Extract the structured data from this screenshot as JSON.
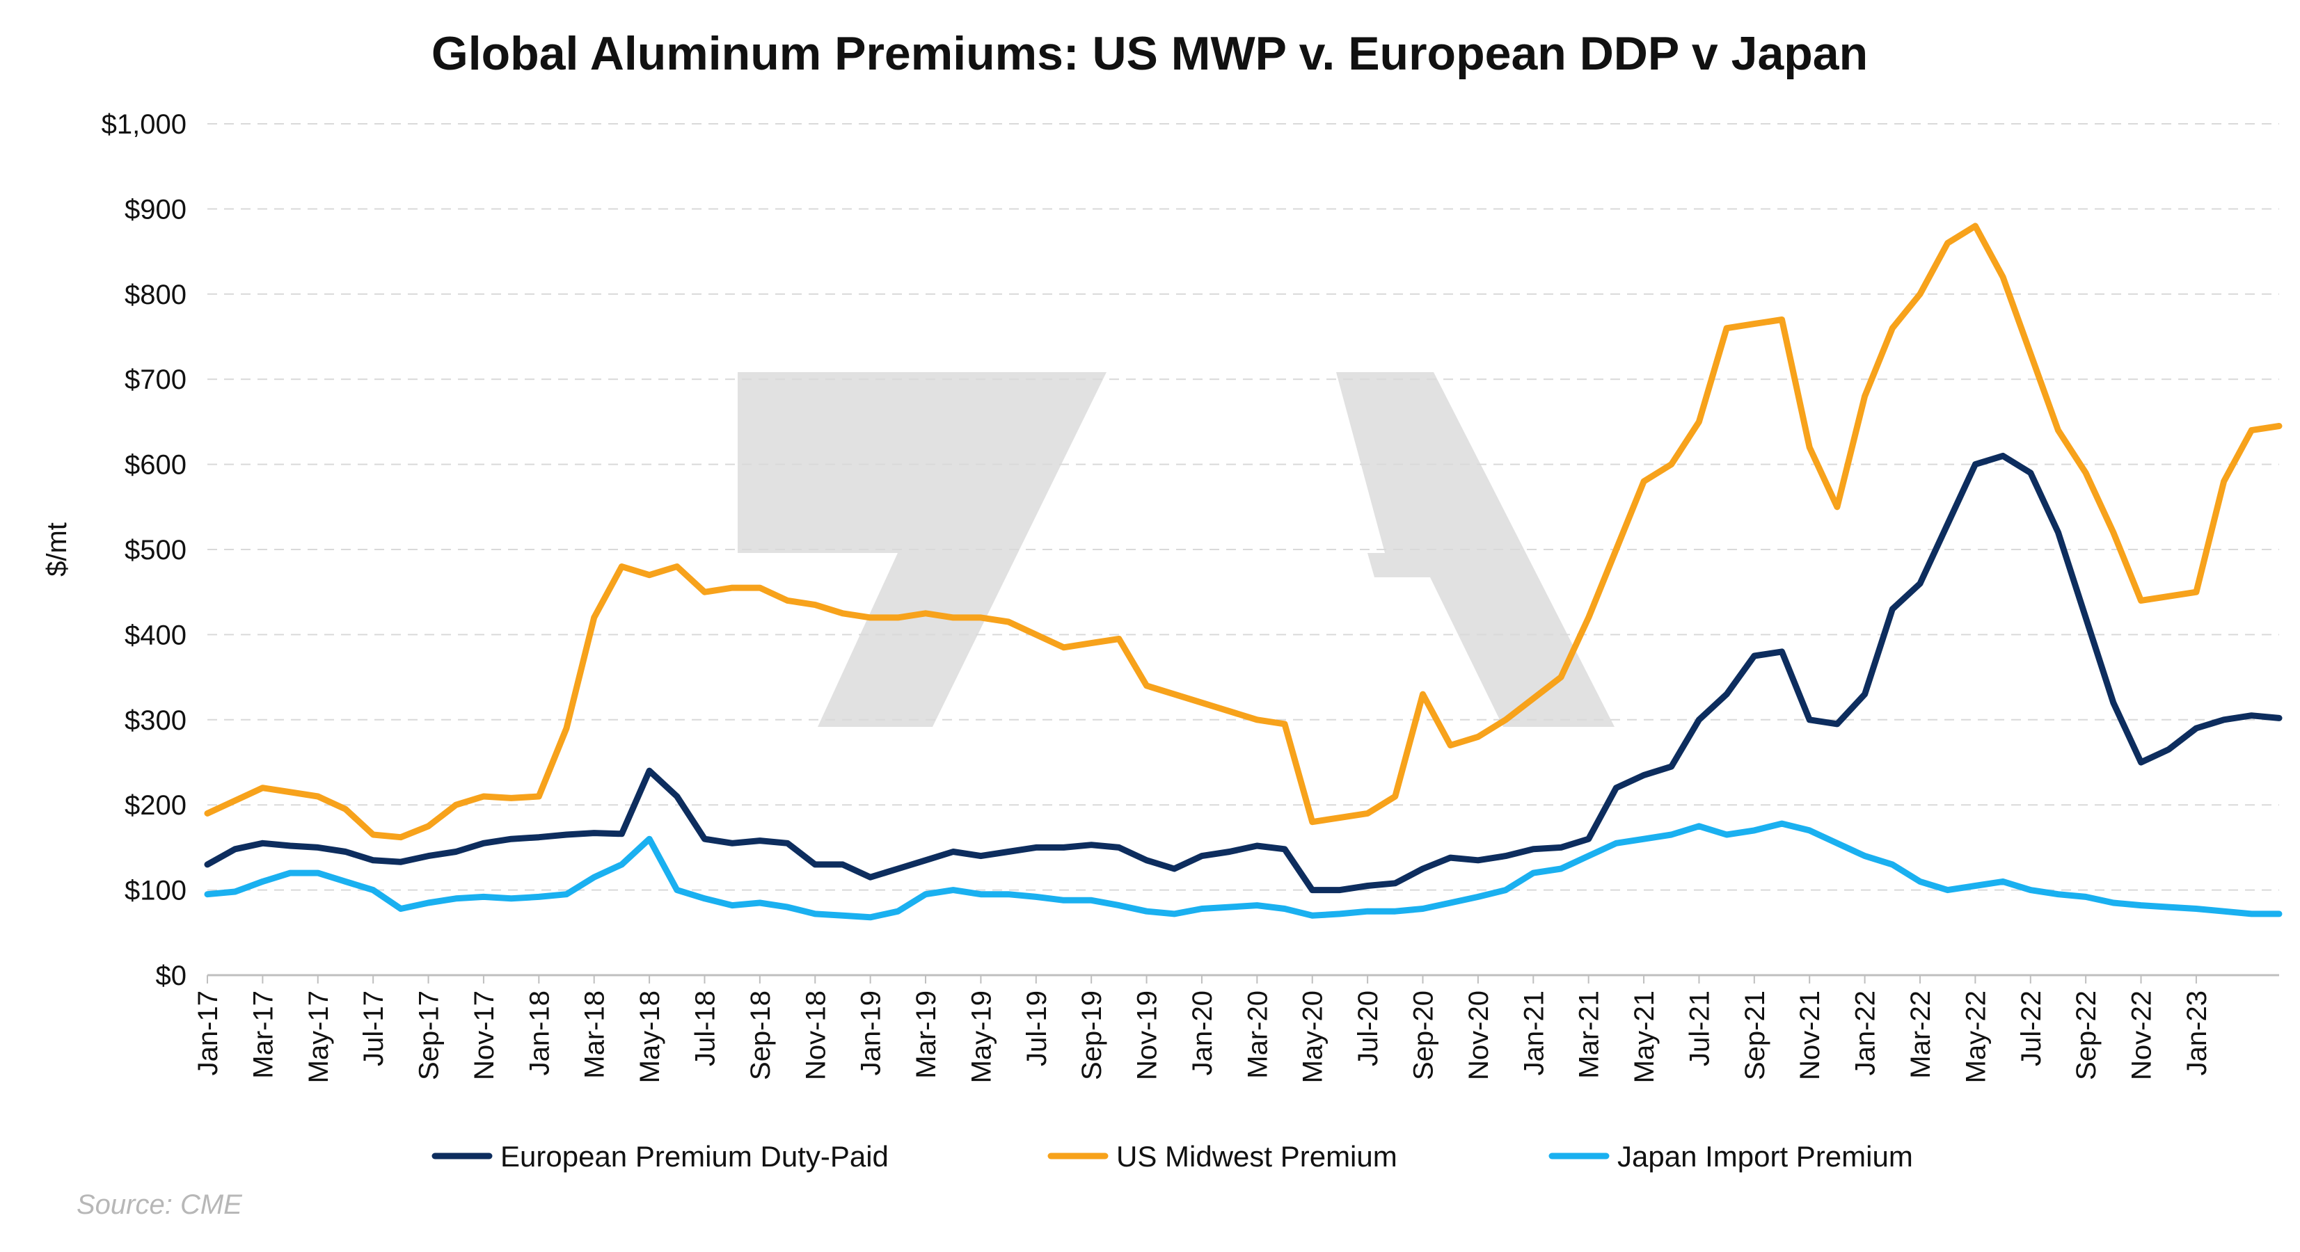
{
  "chart_data": {
    "type": "line",
    "title": "Global Aluminum Premiums: US MWP v. European DDP v Japan",
    "ylabel": "$/mt",
    "xlabel": "",
    "ylim": [
      0,
      1000
    ],
    "yticks": [
      "$0",
      "$100",
      "$200",
      "$300",
      "$400",
      "$500",
      "$600",
      "$700",
      "$800",
      "$900",
      "$1,000"
    ],
    "yticks_values": [
      0,
      100,
      200,
      300,
      400,
      500,
      600,
      700,
      800,
      900,
      1000
    ],
    "xticks": [
      "Jan-17",
      "Mar-17",
      "May-17",
      "Jul-17",
      "Sep-17",
      "Nov-17",
      "Jan-18",
      "Mar-18",
      "May-18",
      "Jul-18",
      "Sep-18",
      "Nov-18",
      "Jan-19",
      "Mar-19",
      "May-19",
      "Jul-19",
      "Sep-19",
      "Nov-19",
      "Jan-20",
      "Mar-20",
      "May-20",
      "Jul-20",
      "Sep-20",
      "Nov-20",
      "Jan-21",
      "Mar-21",
      "May-21",
      "Jul-21",
      "Sep-21",
      "Nov-21",
      "Jan-22",
      "Mar-22",
      "May-22",
      "Jul-22",
      "Sep-22",
      "Nov-22",
      "Jan-23"
    ],
    "xlim": [
      "Jan-17",
      "Apr-23"
    ],
    "grid": true,
    "legend_position": "bottom",
    "series": [
      {
        "name": "European Premium Duty-Paid",
        "color": "#0d2d5e",
        "points": [
          [
            "Jan-17",
            130
          ],
          [
            "Feb-17",
            148
          ],
          [
            "Mar-17",
            155
          ],
          [
            "Apr-17",
            152
          ],
          [
            "May-17",
            150
          ],
          [
            "Jun-17",
            145
          ],
          [
            "Jul-17",
            135
          ],
          [
            "Aug-17",
            133
          ],
          [
            "Sep-17",
            140
          ],
          [
            "Oct-17",
            145
          ],
          [
            "Nov-17",
            155
          ],
          [
            "Dec-17",
            160
          ],
          [
            "Jan-18",
            162
          ],
          [
            "Feb-18",
            165
          ],
          [
            "Mar-18",
            167
          ],
          [
            "Apr-18",
            166
          ],
          [
            "May-18",
            240
          ],
          [
            "Jun-18",
            210
          ],
          [
            "Jul-18",
            160
          ],
          [
            "Aug-18",
            155
          ],
          [
            "Sep-18",
            158
          ],
          [
            "Oct-18",
            155
          ],
          [
            "Nov-18",
            130
          ],
          [
            "Dec-18",
            130
          ],
          [
            "Jan-19",
            115
          ],
          [
            "Feb-19",
            125
          ],
          [
            "Mar-19",
            135
          ],
          [
            "Apr-19",
            145
          ],
          [
            "May-19",
            140
          ],
          [
            "Jun-19",
            145
          ],
          [
            "Jul-19",
            150
          ],
          [
            "Aug-19",
            150
          ],
          [
            "Sep-19",
            153
          ],
          [
            "Oct-19",
            150
          ],
          [
            "Nov-19",
            135
          ],
          [
            "Dec-19",
            125
          ],
          [
            "Jan-20",
            140
          ],
          [
            "Feb-20",
            145
          ],
          [
            "Mar-20",
            152
          ],
          [
            "Apr-20",
            148
          ],
          [
            "May-20",
            100
          ],
          [
            "Jun-20",
            100
          ],
          [
            "Jul-20",
            105
          ],
          [
            "Aug-20",
            108
          ],
          [
            "Sep-20",
            125
          ],
          [
            "Oct-20",
            138
          ],
          [
            "Nov-20",
            135
          ],
          [
            "Dec-20",
            140
          ],
          [
            "Jan-21",
            148
          ],
          [
            "Feb-21",
            150
          ],
          [
            "Mar-21",
            160
          ],
          [
            "Apr-21",
            220
          ],
          [
            "May-21",
            235
          ],
          [
            "Jun-21",
            245
          ],
          [
            "Jul-21",
            300
          ],
          [
            "Aug-21",
            330
          ],
          [
            "Sep-21",
            375
          ],
          [
            "Oct-21",
            380
          ],
          [
            "Nov-21",
            300
          ],
          [
            "Dec-21",
            295
          ],
          [
            "Jan-22",
            330
          ],
          [
            "Feb-22",
            430
          ],
          [
            "Mar-22",
            460
          ],
          [
            "Apr-22",
            530
          ],
          [
            "May-22",
            600
          ],
          [
            "Jun-22",
            610
          ],
          [
            "Jul-22",
            590
          ],
          [
            "Aug-22",
            520
          ],
          [
            "Sep-22",
            420
          ],
          [
            "Oct-22",
            320
          ],
          [
            "Nov-22",
            250
          ],
          [
            "Dec-22",
            265
          ],
          [
            "Jan-23",
            290
          ],
          [
            "Feb-23",
            300
          ],
          [
            "Mar-23",
            305
          ],
          [
            "Apr-23",
            302
          ]
        ]
      },
      {
        "name": "US Midwest Premium",
        "color": "#f7a21b",
        "points": [
          [
            "Jan-17",
            190
          ],
          [
            "Feb-17",
            205
          ],
          [
            "Mar-17",
            220
          ],
          [
            "Apr-17",
            215
          ],
          [
            "May-17",
            210
          ],
          [
            "Jun-17",
            195
          ],
          [
            "Jul-17",
            165
          ],
          [
            "Aug-17",
            162
          ],
          [
            "Sep-17",
            175
          ],
          [
            "Oct-17",
            200
          ],
          [
            "Nov-17",
            210
          ],
          [
            "Dec-17",
            208
          ],
          [
            "Jan-18",
            210
          ],
          [
            "Feb-18",
            290
          ],
          [
            "Mar-18",
            420
          ],
          [
            "Apr-18",
            480
          ],
          [
            "May-18",
            470
          ],
          [
            "Jun-18",
            480
          ],
          [
            "Jul-18",
            450
          ],
          [
            "Aug-18",
            455
          ],
          [
            "Sep-18",
            455
          ],
          [
            "Oct-18",
            440
          ],
          [
            "Nov-18",
            435
          ],
          [
            "Dec-18",
            425
          ],
          [
            "Jan-19",
            420
          ],
          [
            "Feb-19",
            420
          ],
          [
            "Mar-19",
            425
          ],
          [
            "Apr-19",
            420
          ],
          [
            "May-19",
            420
          ],
          [
            "Jun-19",
            415
          ],
          [
            "Jul-19",
            400
          ],
          [
            "Aug-19",
            385
          ],
          [
            "Sep-19",
            390
          ],
          [
            "Oct-19",
            395
          ],
          [
            "Nov-19",
            340
          ],
          [
            "Dec-19",
            330
          ],
          [
            "Jan-20",
            320
          ],
          [
            "Feb-20",
            310
          ],
          [
            "Mar-20",
            300
          ],
          [
            "Apr-20",
            295
          ],
          [
            "May-20",
            180
          ],
          [
            "Jun-20",
            185
          ],
          [
            "Jul-20",
            190
          ],
          [
            "Aug-20",
            210
          ],
          [
            "Sep-20",
            330
          ],
          [
            "Oct-20",
            270
          ],
          [
            "Nov-20",
            280
          ],
          [
            "Dec-20",
            300
          ],
          [
            "Jan-21",
            325
          ],
          [
            "Feb-21",
            350
          ],
          [
            "Mar-21",
            420
          ],
          [
            "Apr-21",
            500
          ],
          [
            "May-21",
            580
          ],
          [
            "Jun-21",
            600
          ],
          [
            "Jul-21",
            650
          ],
          [
            "Aug-21",
            760
          ],
          [
            "Sep-21",
            765
          ],
          [
            "Oct-21",
            770
          ],
          [
            "Nov-21",
            620
          ],
          [
            "Dec-21",
            550
          ],
          [
            "Jan-22",
            680
          ],
          [
            "Feb-22",
            760
          ],
          [
            "Mar-22",
            800
          ],
          [
            "Apr-22",
            860
          ],
          [
            "May-22",
            880
          ],
          [
            "Jun-22",
            820
          ],
          [
            "Jul-22",
            730
          ],
          [
            "Aug-22",
            640
          ],
          [
            "Sep-22",
            590
          ],
          [
            "Oct-22",
            520
          ],
          [
            "Nov-22",
            440
          ],
          [
            "Dec-22",
            445
          ],
          [
            "Jan-23",
            450
          ],
          [
            "Feb-23",
            580
          ],
          [
            "Mar-23",
            640
          ],
          [
            "Apr-23",
            645
          ]
        ]
      },
      {
        "name": "Japan Import Premium",
        "color": "#1ab0f0",
        "points": [
          [
            "Jan-17",
            95
          ],
          [
            "Feb-17",
            98
          ],
          [
            "Mar-17",
            110
          ],
          [
            "Apr-17",
            120
          ],
          [
            "May-17",
            120
          ],
          [
            "Jun-17",
            110
          ],
          [
            "Jul-17",
            100
          ],
          [
            "Aug-17",
            78
          ],
          [
            "Sep-17",
            85
          ],
          [
            "Oct-17",
            90
          ],
          [
            "Nov-17",
            92
          ],
          [
            "Dec-17",
            90
          ],
          [
            "Jan-18",
            92
          ],
          [
            "Feb-18",
            95
          ],
          [
            "Mar-18",
            115
          ],
          [
            "Apr-18",
            130
          ],
          [
            "May-18",
            160
          ],
          [
            "Jun-18",
            100
          ],
          [
            "Jul-18",
            90
          ],
          [
            "Aug-18",
            82
          ],
          [
            "Sep-18",
            85
          ],
          [
            "Oct-18",
            80
          ],
          [
            "Nov-18",
            72
          ],
          [
            "Dec-18",
            70
          ],
          [
            "Jan-19",
            68
          ],
          [
            "Feb-19",
            75
          ],
          [
            "Mar-19",
            95
          ],
          [
            "Apr-19",
            100
          ],
          [
            "May-19",
            95
          ],
          [
            "Jun-19",
            95
          ],
          [
            "Jul-19",
            92
          ],
          [
            "Aug-19",
            88
          ],
          [
            "Sep-19",
            88
          ],
          [
            "Oct-19",
            82
          ],
          [
            "Nov-19",
            75
          ],
          [
            "Dec-19",
            72
          ],
          [
            "Jan-20",
            78
          ],
          [
            "Feb-20",
            80
          ],
          [
            "Mar-20",
            82
          ],
          [
            "Apr-20",
            78
          ],
          [
            "May-20",
            70
          ],
          [
            "Jun-20",
            72
          ],
          [
            "Jul-20",
            75
          ],
          [
            "Aug-20",
            75
          ],
          [
            "Sep-20",
            78
          ],
          [
            "Oct-20",
            85
          ],
          [
            "Nov-20",
            92
          ],
          [
            "Dec-20",
            100
          ],
          [
            "Jan-21",
            120
          ],
          [
            "Feb-21",
            125
          ],
          [
            "Mar-21",
            140
          ],
          [
            "Apr-21",
            155
          ],
          [
            "May-21",
            160
          ],
          [
            "Jun-21",
            165
          ],
          [
            "Jul-21",
            175
          ],
          [
            "Aug-21",
            165
          ],
          [
            "Sep-21",
            170
          ],
          [
            "Oct-21",
            178
          ],
          [
            "Nov-21",
            170
          ],
          [
            "Dec-21",
            155
          ],
          [
            "Jan-22",
            140
          ],
          [
            "Feb-22",
            130
          ],
          [
            "Mar-22",
            110
          ],
          [
            "Apr-22",
            100
          ],
          [
            "May-22",
            105
          ],
          [
            "Jun-22",
            110
          ],
          [
            "Jul-22",
            100
          ],
          [
            "Aug-22",
            95
          ],
          [
            "Sep-22",
            92
          ],
          [
            "Oct-22",
            85
          ],
          [
            "Nov-22",
            82
          ],
          [
            "Dec-22",
            80
          ],
          [
            "Jan-23",
            78
          ],
          [
            "Feb-23",
            75
          ],
          [
            "Mar-23",
            72
          ],
          [
            "Apr-23",
            72
          ]
        ]
      }
    ],
    "annotations": [
      {
        "text": "Source: CME",
        "position": "bottom-left"
      }
    ]
  }
}
